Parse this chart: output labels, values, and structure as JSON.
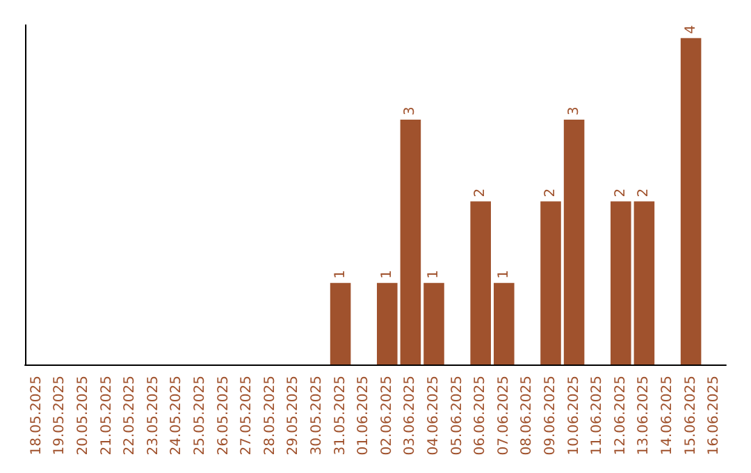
{
  "chart_data": {
    "type": "bar",
    "categories": [
      "18.05.2025",
      "19.05.2025",
      "20.05.2025",
      "21.05.2025",
      "22.05.2025",
      "23.05.2025",
      "24.05.2025",
      "25.05.2025",
      "26.05.2025",
      "27.05.2025",
      "28.05.2025",
      "29.05.2025",
      "30.05.2025",
      "31.05.2025",
      "01.06.2025",
      "02.06.2025",
      "03.06.2025",
      "04.06.2025",
      "05.06.2025",
      "06.06.2025",
      "07.06.2025",
      "08.06.2025",
      "09.06.2025",
      "10.06.2025",
      "11.06.2025",
      "12.06.2025",
      "13.06.2025",
      "14.06.2025",
      "15.06.2025",
      "16.06.2025"
    ],
    "values": [
      null,
      null,
      null,
      null,
      null,
      null,
      null,
      null,
      null,
      null,
      null,
      null,
      null,
      1,
      null,
      1,
      3,
      1,
      null,
      2,
      1,
      null,
      2,
      3,
      null,
      2,
      2,
      null,
      4,
      null
    ],
    "data_labels": true,
    "color": "#a0522d",
    "grid": false
  }
}
